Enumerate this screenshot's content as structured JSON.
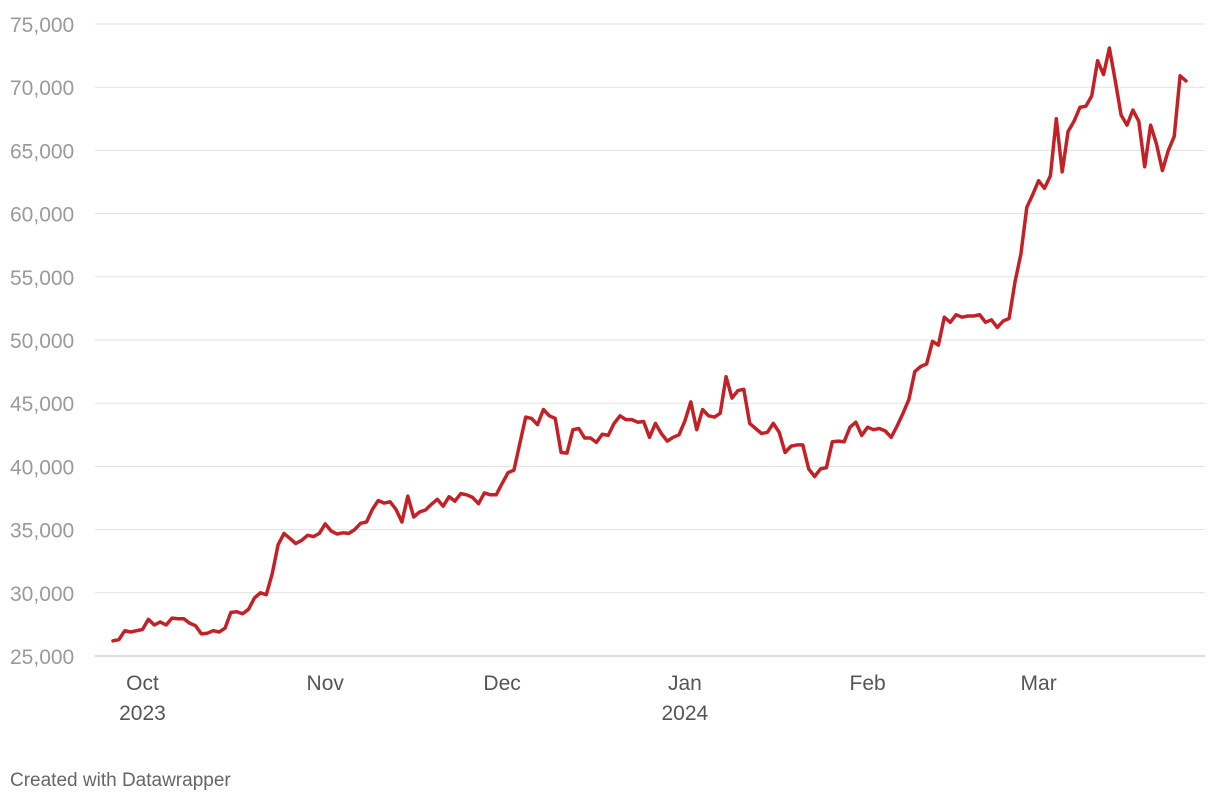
{
  "chart_data": {
    "type": "line",
    "footer": "Created with Datawrapper",
    "categories": [
      null,
      null,
      null,
      null,
      null,
      "Oct\n2023",
      null,
      null,
      null,
      null,
      null,
      null,
      null,
      null,
      null,
      null,
      null,
      null,
      null,
      null,
      null,
      null,
      null,
      null,
      null,
      null,
      null,
      null,
      null,
      null,
      null,
      null,
      null,
      null,
      null,
      null,
      "Nov",
      null,
      null,
      null,
      null,
      null,
      null,
      null,
      null,
      null,
      null,
      null,
      null,
      null,
      null,
      null,
      null,
      null,
      null,
      null,
      null,
      null,
      null,
      null,
      null,
      null,
      null,
      null,
      null,
      null,
      "Dec",
      null,
      null,
      null,
      null,
      null,
      null,
      null,
      null,
      null,
      null,
      null,
      null,
      null,
      null,
      null,
      null,
      null,
      null,
      null,
      null,
      null,
      null,
      null,
      null,
      null,
      null,
      null,
      null,
      null,
      null,
      "Jan\n2024",
      null,
      null,
      null,
      null,
      null,
      null,
      null,
      null,
      null,
      null,
      null,
      null,
      null,
      null,
      null,
      null,
      null,
      null,
      null,
      null,
      null,
      null,
      null,
      null,
      null,
      null,
      null,
      null,
      null,
      null,
      "Feb",
      null,
      null,
      null,
      null,
      null,
      null,
      null,
      null,
      null,
      null,
      null,
      null,
      null,
      null,
      null,
      null,
      null,
      null,
      null,
      null,
      null,
      null,
      null,
      null,
      null,
      null,
      null,
      null,
      "Mar",
      null,
      null,
      null,
      null,
      null,
      null,
      null,
      null,
      null,
      null,
      null,
      null,
      null,
      null,
      null,
      null,
      null,
      null,
      null,
      null,
      null,
      null,
      null,
      null,
      null
    ],
    "series": [
      {
        "name": null,
        "color": "#c42127",
        "values": [
          26200,
          26300,
          27000,
          26900,
          27000,
          27100,
          27900,
          27450,
          27700,
          27450,
          28000,
          27950,
          27950,
          27600,
          27400,
          26750,
          26800,
          27000,
          26900,
          27200,
          28450,
          28500,
          28350,
          28700,
          29600,
          30000,
          29850,
          31500,
          33800,
          34700,
          34300,
          33900,
          34150,
          34550,
          34450,
          34700,
          35450,
          34900,
          34650,
          34750,
          34700,
          35000,
          35500,
          35600,
          36600,
          37300,
          37100,
          37200,
          36600,
          35600,
          37650,
          36000,
          36400,
          36550,
          37000,
          37400,
          36850,
          37600,
          37250,
          37850,
          37750,
          37550,
          37050,
          37900,
          37750,
          37750,
          38650,
          39500,
          39700,
          41800,
          43900,
          43800,
          43300,
          44500,
          44000,
          43800,
          41100,
          41050,
          42900,
          43000,
          42250,
          42250,
          41900,
          42550,
          42450,
          43400,
          44000,
          43700,
          43700,
          43500,
          43550,
          42300,
          43400,
          42600,
          42000,
          42300,
          42500,
          43600,
          45100,
          42900,
          44500,
          44000,
          43900,
          44200,
          47100,
          45400,
          46000,
          46100,
          43400,
          43000,
          42600,
          42700,
          43400,
          42700,
          41100,
          41600,
          41700,
          41700,
          39800,
          39200,
          39800,
          39900,
          41950,
          42000,
          41950,
          43100,
          43500,
          42450,
          43100,
          42900,
          43000,
          42800,
          42300,
          43200,
          44200,
          45300,
          47500,
          47900,
          48100,
          49900,
          49600,
          51800,
          51400,
          52000,
          51800,
          51900,
          51900,
          52000,
          51400,
          51600,
          51000,
          51500,
          51700,
          54600,
          56800,
          60500,
          61500,
          62600,
          62000,
          63000,
          67500,
          63300,
          66500,
          67300,
          68400,
          68500,
          69300,
          72100,
          71000,
          73100,
          70500,
          67800,
          67000,
          68200,
          67300,
          63700,
          67000,
          65500,
          63400,
          65000,
          66100,
          70900,
          70500
        ]
      }
    ],
    "ylim": [
      25000,
      75000
    ],
    "yticks": [
      {
        "value": 25000,
        "label": "25,000"
      },
      {
        "value": 30000,
        "label": "30,000"
      },
      {
        "value": 35000,
        "label": "35,000"
      },
      {
        "value": 40000,
        "label": "40,000"
      },
      {
        "value": 45000,
        "label": "45,000"
      },
      {
        "value": 50000,
        "label": "50,000"
      },
      {
        "value": 55000,
        "label": "55,000"
      },
      {
        "value": 60000,
        "label": "60,000"
      },
      {
        "value": 65000,
        "label": "65,000"
      },
      {
        "value": 70000,
        "label": "70,000"
      },
      {
        "value": 75000,
        "label": "75,000"
      }
    ],
    "grid": true
  }
}
